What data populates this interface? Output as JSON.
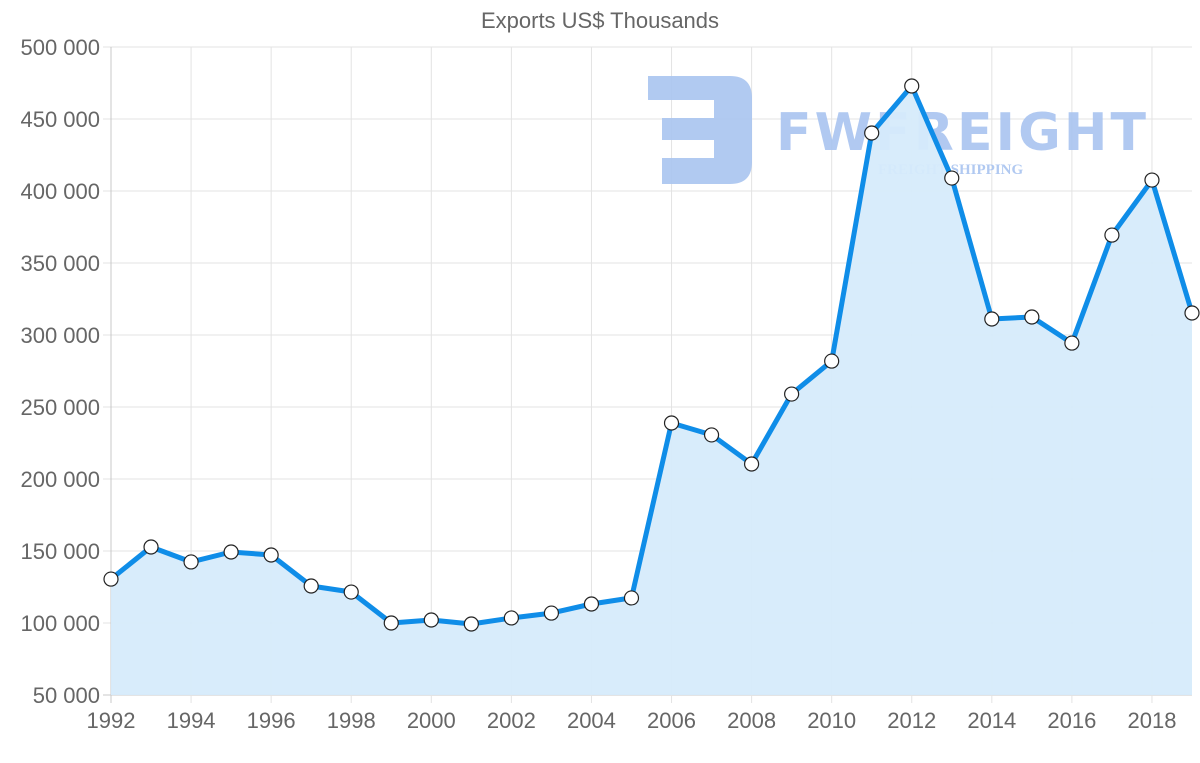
{
  "chart_data": {
    "type": "area",
    "title": "Exports US$ Thousands",
    "xlabel": "",
    "ylabel": "",
    "x": [
      1992,
      1993,
      1994,
      1995,
      1996,
      1997,
      1998,
      1999,
      2000,
      2001,
      2002,
      2003,
      2004,
      2005,
      2006,
      2007,
      2008,
      2009,
      2010,
      2011,
      2012,
      2013,
      2014,
      2015,
      2016,
      2017,
      2018,
      2019
    ],
    "series": [
      {
        "name": "Exports US$ Thousands",
        "values": [
          130500,
          152800,
          142400,
          149300,
          147200,
          125700,
          121500,
          100000,
          102100,
          99300,
          103500,
          106900,
          113200,
          117400,
          238900,
          230600,
          210400,
          259000,
          281900,
          440300,
          472900,
          409000,
          311100,
          312500,
          294400,
          369400,
          407600,
          315300
        ],
        "color": "#0f8de8",
        "fill": "#d6ebfb"
      }
    ],
    "ylim": [
      50000,
      500000
    ],
    "yticks": [
      "50 000",
      "100 000",
      "150 000",
      "200 000",
      "250 000",
      "300 000",
      "350 000",
      "400 000",
      "450 000",
      "500 000"
    ],
    "xticks": [
      "1992",
      "1994",
      "1996",
      "1998",
      "2000",
      "2002",
      "2004",
      "2006",
      "2008",
      "2010",
      "2012",
      "2014",
      "2016",
      "2018"
    ],
    "grid": true,
    "legend": "none"
  },
  "watermark": {
    "brand": "FWFREIGHT",
    "tagline": "FREIGHT SHIPPING",
    "color": "#a9c4f0"
  }
}
